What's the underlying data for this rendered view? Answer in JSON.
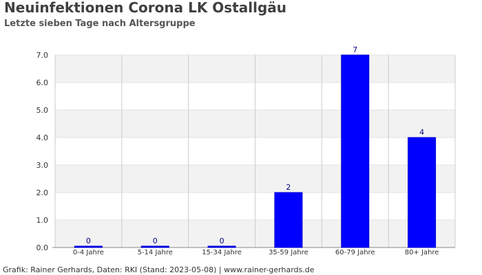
{
  "chart_data": {
    "type": "bar",
    "title": "Neuinfektionen Corona LK Ostallgäu",
    "subtitle": "Letzte sieben Tage nach Altersgruppe",
    "categories": [
      "0-4 Jahre",
      "5-14 Jahre",
      "15-34 Jahre",
      "35-59 Jahre",
      "60-79 Jahre",
      "80+ Jahre"
    ],
    "values": [
      0,
      0,
      0,
      2,
      7,
      4
    ],
    "data_labels": [
      "0",
      "0",
      "0",
      "2",
      "7",
      "4"
    ],
    "ylim": [
      0,
      7
    ],
    "y_ticks": [
      0,
      1,
      2,
      3,
      4,
      5,
      6,
      7
    ],
    "y_tick_labels": [
      "0.0",
      "1.0",
      "2.0",
      "3.0",
      "4.0",
      "5.0",
      "6.0",
      "7.0"
    ],
    "xlabel": "",
    "ylabel": "",
    "grid": true,
    "legend": "none",
    "colors": {
      "bar": "#0000ff",
      "bar_border": "#0000cc",
      "data_label": "#000080",
      "band_alt": "#f2f2f2",
      "grid": "#cccccc",
      "text": "#333333"
    }
  },
  "footer": "Grafik: Rainer Gerhards, Daten: RKI (Stand: 2023-05-08) | www.rainer-gerhards.de"
}
